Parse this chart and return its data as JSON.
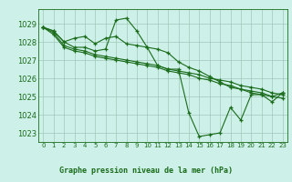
{
  "title": "Graphe pression niveau de la mer (hPa)",
  "bg_color": "#cdf0e8",
  "plot_bg_color": "#cdf0e8",
  "grid_color": "#a0c8b8",
  "line_color": "#1a6b1a",
  "ylim": [
    1022.5,
    1029.8
  ],
  "xlim": [
    -0.5,
    23.5
  ],
  "yticks": [
    1023,
    1024,
    1025,
    1026,
    1027,
    1028,
    1029
  ],
  "xticks": [
    0,
    1,
    2,
    3,
    4,
    5,
    6,
    7,
    8,
    9,
    10,
    11,
    12,
    13,
    14,
    15,
    16,
    17,
    18,
    19,
    20,
    21,
    22,
    23
  ],
  "series1": [
    1028.8,
    1028.6,
    1028.0,
    1027.7,
    1027.7,
    1027.5,
    1027.6,
    1029.2,
    1029.3,
    1028.6,
    1027.7,
    1026.7,
    1026.5,
    1026.5,
    1024.1,
    1022.8,
    1022.9,
    1023.0,
    1024.4,
    1023.7,
    1025.1,
    1025.1,
    1024.7,
    1025.2
  ],
  "series2": [
    1028.8,
    1028.6,
    1028.0,
    1028.2,
    1028.3,
    1027.9,
    1028.2,
    1028.3,
    1027.9,
    1027.8,
    1027.7,
    1027.6,
    1027.4,
    1026.9,
    1026.6,
    1026.4,
    1026.1,
    1025.8,
    1025.5,
    1025.4,
    1025.2,
    1025.1,
    1025.0,
    1025.2
  ],
  "series3": [
    1028.8,
    1028.5,
    1027.8,
    1027.6,
    1027.5,
    1027.3,
    1027.2,
    1027.1,
    1027.0,
    1026.9,
    1026.8,
    1026.7,
    1026.5,
    1026.4,
    1026.3,
    1026.2,
    1026.0,
    1025.9,
    1025.8,
    1025.6,
    1025.5,
    1025.4,
    1025.2,
    1025.1
  ],
  "series4": [
    1028.8,
    1028.4,
    1027.7,
    1027.5,
    1027.4,
    1027.2,
    1027.1,
    1027.0,
    1026.9,
    1026.8,
    1026.7,
    1026.6,
    1026.4,
    1026.3,
    1026.2,
    1026.0,
    1025.9,
    1025.7,
    1025.6,
    1025.4,
    1025.3,
    1025.2,
    1025.0,
    1024.9
  ],
  "ylabel_fontsize": 6,
  "xlabel_fontsize": 5,
  "title_fontsize": 6
}
